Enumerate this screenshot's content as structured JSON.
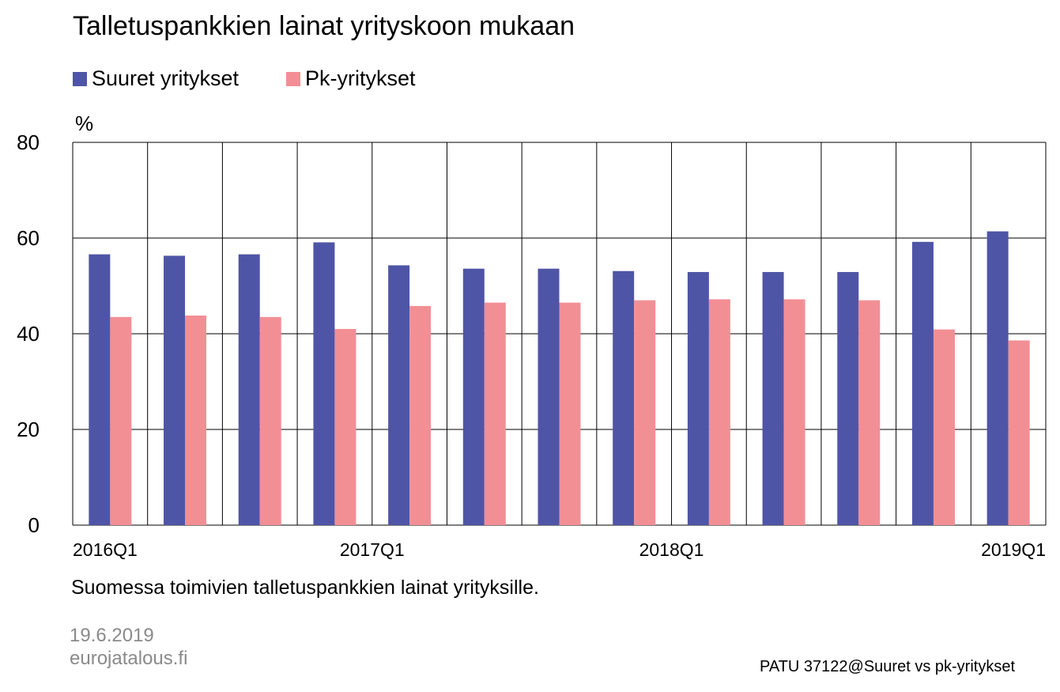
{
  "chart_data": {
    "type": "bar",
    "title": "Talletuspankkien lainat yrityskoon mukaan",
    "ylabel": "%",
    "ylim": [
      0,
      80
    ],
    "yticks": [
      0,
      20,
      40,
      60,
      80
    ],
    "grid": true,
    "legend_placement": "top-left",
    "categories": [
      "2016Q1",
      "",
      "",
      "",
      "2017Q1",
      "",
      "",
      "",
      "2018Q1",
      "",
      "",
      "",
      "2019Q1"
    ],
    "series": [
      {
        "name": "Suuret yritykset",
        "color": "#4f55a6",
        "values": [
          56.6,
          56.3,
          56.6,
          59.1,
          54.3,
          53.6,
          53.6,
          53.1,
          52.9,
          52.9,
          52.9,
          59.2,
          61.4
        ]
      },
      {
        "name": "Pk-yritykset",
        "color": "#f28f95",
        "values": [
          43.5,
          43.8,
          43.5,
          41.0,
          45.8,
          46.5,
          46.5,
          47.0,
          47.2,
          47.2,
          47.0,
          40.9,
          38.6
        ]
      }
    ]
  },
  "subtitle": "Suomessa toimivien talletuspankkien lainat yrityksille.",
  "date": "19.6.2019",
  "site": "eurojatalous.fi",
  "source": "PATU 37122@Suuret  vs pk-yritykset"
}
